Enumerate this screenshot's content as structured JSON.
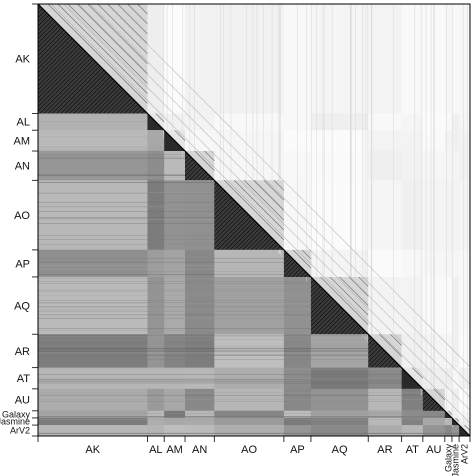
{
  "chart_data": {
    "type": "heatmap",
    "title": "",
    "xlabel": "",
    "ylabel": "",
    "grid": false,
    "colormap": [
      "#ffffff",
      "#000000"
    ],
    "lower_triangle": "dense similarity pattern (grey to black)",
    "upper_triangle": "light, mostly white with diagonal streaks",
    "groups": [
      {
        "label": "AK",
        "start": 0,
        "end": 0.2534
      },
      {
        "label": "AL",
        "start": 0.2534,
        "end": 0.2921
      },
      {
        "label": "AM",
        "start": 0.2921,
        "end": 0.3403
      },
      {
        "label": "AN",
        "start": 0.3403,
        "end": 0.4081
      },
      {
        "label": "AO",
        "start": 0.4081,
        "end": 0.5692
      },
      {
        "label": "AP",
        "start": 0.5692,
        "end": 0.6318
      },
      {
        "label": "AQ",
        "start": 0.6318,
        "end": 0.7644
      },
      {
        "label": "AR",
        "start": 0.7644,
        "end": 0.8418
      },
      {
        "label": "AT",
        "start": 0.8418,
        "end": 0.8909
      },
      {
        "label": "AU",
        "start": 0.8909,
        "end": 0.9417
      },
      {
        "label": "Galaxy",
        "start": 0.9417,
        "end": 0.9582
      },
      {
        "label": "Jasmine",
        "start": 0.9582,
        "end": 0.9747
      },
      {
        "label": "ArV2",
        "start": 0.9747,
        "end": 1.0
      }
    ]
  }
}
